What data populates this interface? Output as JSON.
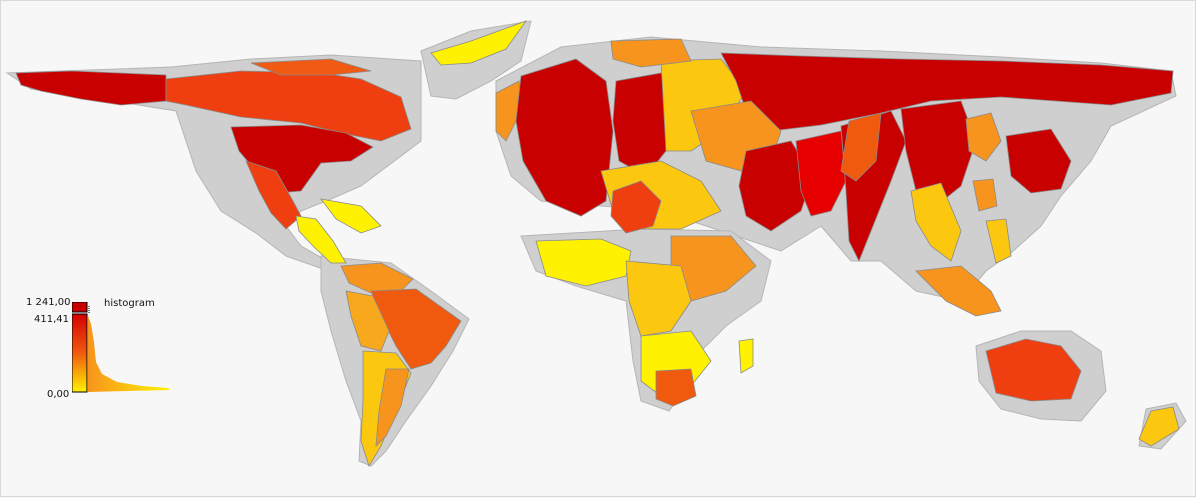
{
  "legend": {
    "max_label": "1 241,00",
    "break_label": "411,41",
    "min_label": "0,00",
    "histogram_label": "histogram",
    "colors": {
      "top_band": "#c80000",
      "high": "#d40000",
      "mid_high": "#f03c0a",
      "mid": "#f7941d",
      "low": "#fff200",
      "base": "#cfcfcf",
      "border": "#8c8c8c"
    }
  }
}
